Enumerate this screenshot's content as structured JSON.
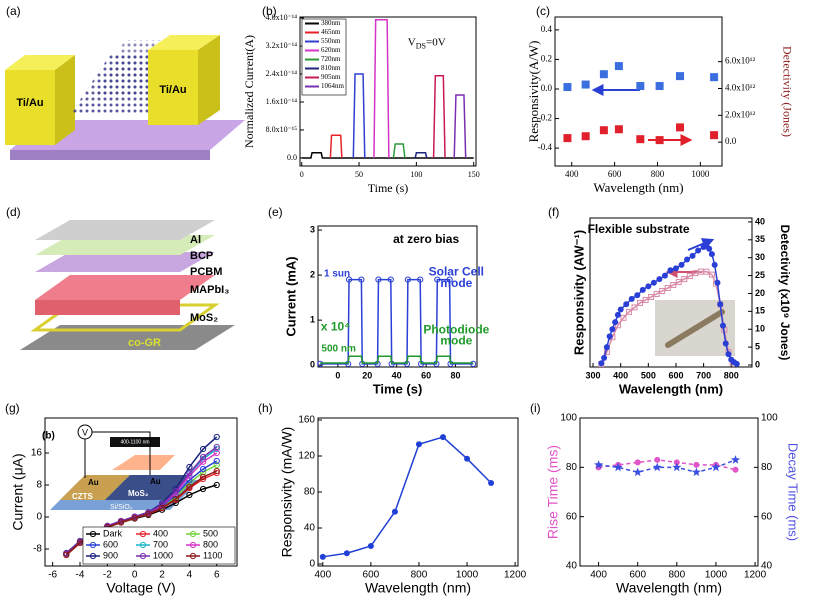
{
  "panel_a": {
    "label": "(a)",
    "texts": [
      "Ti/Au",
      "Ti/Au"
    ]
  },
  "panel_d": {
    "label": "(d)",
    "texts": [
      "Al",
      "BCP",
      "PCBM",
      "MAPbI₃",
      "MoS₂",
      "co-GR"
    ]
  },
  "panel_g_inset": {
    "texts": [
      "(b)",
      "V",
      "400-1100 nm",
      "CZTS",
      "Au",
      "MoS₂",
      "Au",
      "Si/SiO₂"
    ]
  },
  "chart_data": [
    {
      "type": "line",
      "panel": "(b)",
      "xlabel": "Time (s)",
      "ylabel": "Normalized Current(A)",
      "xlim": [
        -1.5,
        152
      ],
      "xticks": [
        0,
        50,
        100,
        150
      ],
      "ylim": [
        -2.3e-15,
        4.03e-14
      ],
      "yticks": [
        {
          "value": 0,
          "label": "0.0"
        },
        {
          "value": 8e-15,
          "label": "8.0x10⁻¹⁵"
        },
        {
          "value": 1.6e-14,
          "label": "1.6x10⁻¹⁴"
        },
        {
          "value": 2.4e-14,
          "label": "2.4x10⁻¹⁴"
        },
        {
          "value": 3.2e-14,
          "label": "3.2x10⁻¹⁴"
        },
        {
          "value": 4e-14,
          "label": "4.0x10⁻¹⁴"
        }
      ],
      "legend": "upper left",
      "annotations": [
        {
          "text": "V",
          "sub": "DS",
          "after": "=0V",
          "color": "#000000"
        }
      ],
      "series": [
        {
          "name": "380nm",
          "color": "#000000",
          "x": [
            0,
            8,
            9,
            17,
            18,
            150
          ],
          "values": [
            0,
            0,
            1.5e-15,
            1.5e-15,
            0,
            0
          ]
        },
        {
          "name": "465nm",
          "color": "#e8222a",
          "x": [
            25,
            26,
            34,
            35
          ],
          "values": [
            0,
            6.5e-15,
            6.5e-15,
            0
          ]
        },
        {
          "name": "550nm",
          "color": "#2e3fd0",
          "x": [
            45,
            46.5,
            53.5,
            55
          ],
          "values": [
            0,
            2.4e-14,
            2.4e-14,
            0
          ]
        },
        {
          "name": "620nm",
          "color": "#d633c9",
          "x": [
            63,
            64.5,
            74.5,
            76
          ],
          "values": [
            0,
            3.95e-14,
            3.95e-14,
            0
          ]
        },
        {
          "name": "720nm",
          "color": "#2a9a3a",
          "x": [
            80,
            81.5,
            88.5,
            90
          ],
          "values": [
            0,
            4e-15,
            4e-15,
            0
          ]
        },
        {
          "name": "810nm",
          "color": "#1a237e",
          "x": [
            99,
            100,
            108,
            109
          ],
          "values": [
            0,
            1.5e-15,
            1.5e-15,
            0
          ]
        },
        {
          "name": "905nm",
          "color": "#c8185a",
          "x": [
            115,
            116.5,
            123.5,
            125
          ],
          "values": [
            0,
            2.35e-14,
            2.35e-14,
            0
          ]
        },
        {
          "name": "1064nm",
          "color": "#7a2fb0",
          "x": [
            133,
            134.5,
            141.5,
            143
          ],
          "values": [
            0,
            1.8e-14,
            1.8e-14,
            0
          ]
        }
      ]
    },
    {
      "type": "scatter",
      "panel": "(c)",
      "xlabel": "Wavelength (nm)",
      "ylabel": "Responsivity(A/W)",
      "y2label": "Detectivity (Jones)",
      "y2label_color": "#8b1a1a",
      "x": [
        380,
        465,
        550,
        620,
        720,
        810,
        905,
        1064
      ],
      "xlim": [
        322,
        1101
      ],
      "xticks": [
        400,
        600,
        800,
        1000
      ],
      "ylim": [
        -0.521,
        0.487
      ],
      "yticks": [
        {
          "value": -0.4,
          "label": "-0.4"
        },
        {
          "value": -0.2,
          "label": "-0.2"
        },
        {
          "value": 0,
          "label": "0.0"
        },
        {
          "value": 0.2,
          "label": "0.2"
        },
        {
          "value": 0.4,
          "label": "0.4"
        }
      ],
      "y2lim": [
        -1780000000000,
        9330000000000
      ],
      "y2ticks": [
        {
          "value": 0,
          "label": "0.0"
        },
        {
          "value": 2000000000000,
          "label": "2.0x10¹²"
        },
        {
          "value": 4000000000000,
          "label": "4.0x10¹²"
        },
        {
          "value": 6000000000000,
          "label": "6.0x10¹²"
        }
      ],
      "series": [
        {
          "color": "#3b6fe0",
          "marker": "square",
          "values": [
            0.013,
            0.03,
            0.1,
            0.155,
            0.02,
            0.02,
            0.087,
            0.08
          ]
        },
        {
          "color": "#e0202a",
          "marker": "square",
          "axis": "y2",
          "values": [
            300000000000,
            440000000000,
            890000000000,
            960000000000,
            220000000000,
            150000000000,
            1100000000000,
            520000000000
          ]
        }
      ]
    },
    {
      "type": "line",
      "panel": "(e)",
      "xlabel": "Time (s)",
      "ylabel": "Current (mA)",
      "xlim": [
        -13.5,
        94.6
      ],
      "xticks": [
        0,
        20,
        40,
        60,
        80
      ],
      "ylim": [
        -0.04,
        3.09
      ],
      "yticks": [
        0,
        1,
        2,
        3
      ],
      "annotations": [
        {
          "text": "at zero bias",
          "color": "#000000"
        },
        {
          "text": "Solar Cell",
          "color": "#2a3fd6"
        },
        {
          "text": "mode",
          "color": "#2a3fd6"
        },
        {
          "text": "x 10⁴",
          "color": "#1f9a2a"
        },
        {
          "text": "Photodiode",
          "color": "#1f9a2a"
        },
        {
          "text": "mode",
          "color": "#1f9a2a"
        }
      ],
      "series": [
        {
          "name": "1 sun",
          "color": "#2a3fd6",
          "marker": "open-circle",
          "x": [
            -12,
            7,
            7.6,
            16,
            16.6,
            27,
            27.6,
            36,
            36.6,
            47,
            47.6,
            56,
            56.6,
            67,
            67.6,
            76,
            76.6,
            92
          ],
          "values": [
            0.03,
            0.03,
            1.9,
            1.9,
            0.03,
            0.03,
            1.9,
            1.9,
            0.03,
            0.03,
            1.9,
            1.9,
            0.03,
            0.03,
            1.9,
            1.9,
            0.03,
            0.03
          ]
        },
        {
          "name": "500 nm",
          "color": "#1f9a2a",
          "x": [
            -12,
            7,
            7.6,
            16,
            16.6,
            27,
            27.6,
            36,
            36.6,
            47,
            47.6,
            56,
            56.6,
            67,
            67.6,
            76,
            76.6,
            92
          ],
          "values": [
            0.05,
            0.05,
            0.2,
            0.2,
            0.05,
            0.05,
            0.2,
            0.2,
            0.05,
            0.05,
            0.2,
            0.2,
            0.05,
            0.05,
            0.2,
            0.2,
            0.05,
            0.05
          ]
        }
      ]
    },
    {
      "type": "line",
      "panel": "(f)",
      "xlabel": "Wavelength (nm)",
      "ylabel": "Responsivity (AW⁻¹)",
      "y2label": "Detectivity (x10⁹ Jones)",
      "xlim": [
        289,
        875
      ],
      "xticks": [
        300,
        400,
        500,
        600,
        700,
        800
      ],
      "ylim": [
        0,
        1
      ],
      "y2lim": [
        -0.56,
        41.1
      ],
      "y2ticks": [
        0,
        5,
        10,
        15,
        20,
        25,
        30,
        35,
        40
      ],
      "annotations": [
        {
          "text": "Flexible substrate",
          "color": "#000000"
        }
      ],
      "series": [
        {
          "color": "#d98aa8",
          "marker": "open-square",
          "x": [
            330,
            350,
            370,
            390,
            410,
            430,
            450,
            470,
            490,
            510,
            530,
            550,
            570,
            590,
            610,
            630,
            650,
            670,
            690,
            710,
            730,
            745,
            760,
            775,
            790,
            805
          ],
          "values": [
            0.02,
            0.1,
            0.2,
            0.28,
            0.33,
            0.37,
            0.4,
            0.43,
            0.45,
            0.47,
            0.49,
            0.51,
            0.53,
            0.55,
            0.57,
            0.59,
            0.61,
            0.63,
            0.64,
            0.64,
            0.62,
            0.56,
            0.42,
            0.25,
            0.1,
            0.03
          ]
        },
        {
          "color": "#2a3fd6",
          "marker": "circle",
          "axis": "y2",
          "x": [
            330,
            340,
            350,
            360,
            370,
            380,
            390,
            400,
            420,
            440,
            460,
            480,
            500,
            520,
            540,
            560,
            580,
            600,
            620,
            640,
            660,
            680,
            700,
            710,
            720,
            730,
            740,
            750,
            760,
            770,
            780,
            790,
            800,
            810,
            820
          ],
          "values": [
            0.5,
            2,
            5,
            8,
            10,
            12,
            14,
            15.5,
            17,
            18.5,
            19.5,
            21,
            22,
            23,
            24,
            25,
            26.5,
            27,
            28,
            29.5,
            30.5,
            32,
            33,
            33.5,
            32.5,
            31,
            28,
            23,
            17,
            11,
            6,
            3,
            1.5,
            0.8,
            0.3
          ]
        }
      ]
    },
    {
      "type": "line",
      "panel": "(g)",
      "xlabel": "Voltage (V)",
      "ylabel": "Current (μA)",
      "x": [
        -5,
        -4,
        -3,
        -2,
        -1,
        0,
        1,
        2,
        3,
        4,
        5,
        6
      ],
      "xlim": [
        -6.56,
        7.48
      ],
      "xticks": [
        -6,
        -4,
        -2,
        0,
        2,
        4,
        6
      ],
      "ylim": [
        -12.25,
        24.75
      ],
      "yticks": [
        -8,
        0,
        8,
        16
      ],
      "legend": "lower right",
      "series": [
        {
          "name": "Dark",
          "color": "#000000",
          "marker": "open-circle",
          "values": [
            -9.5,
            -6.5,
            -4.2,
            -2.6,
            -1.4,
            -0.4,
            0.5,
            1.8,
            3.5,
            5.5,
            7,
            8
          ]
        },
        {
          "name": "400",
          "color": "#e8222a",
          "marker": "open-circle",
          "values": [
            -9.5,
            -6.5,
            -4.2,
            -2.6,
            -1.4,
            -0.3,
            0.7,
            2.2,
            4.3,
            7.2,
            9.5,
            11
          ]
        },
        {
          "name": "500",
          "color": "#6fd23a",
          "marker": "open-circle",
          "values": [
            -9.4,
            -6.4,
            -4.1,
            -2.5,
            -1.3,
            -0.2,
            0.8,
            2.5,
            5,
            8.5,
            11.2,
            13
          ]
        },
        {
          "name": "600",
          "color": "#2a3fd6",
          "marker": "open-circle",
          "values": [
            -9.3,
            -6.3,
            -4,
            -2.4,
            -1.2,
            -0.1,
            0.9,
            2.7,
            5.5,
            9.2,
            12,
            14
          ]
        },
        {
          "name": "700",
          "color": "#19b5c9",
          "marker": "open-circle",
          "values": [
            -9.2,
            -6.2,
            -3.9,
            -2.3,
            -1.1,
            0,
            1,
            3,
            6.2,
            10.8,
            14.5,
            17
          ]
        },
        {
          "name": "800",
          "color": "#d633c9",
          "marker": "open-circle",
          "values": [
            -9.2,
            -6.2,
            -3.9,
            -2.3,
            -1.1,
            0,
            1,
            2.9,
            6,
            10.3,
            13.8,
            16
          ]
        },
        {
          "name": "900",
          "color": "#1a237e",
          "marker": "open-circle",
          "values": [
            -9,
            -6,
            -3.8,
            -2.2,
            -1,
            0.1,
            1.2,
            3.4,
            7,
            12.5,
            17,
            20
          ]
        },
        {
          "name": "1000",
          "color": "#7a2fb0",
          "marker": "open-circle",
          "values": [
            -9.1,
            -6.1,
            -3.8,
            -2.2,
            -1,
            0.1,
            1.1,
            3.1,
            6.4,
            11,
            15,
            17.5
          ]
        },
        {
          "name": "1100",
          "color": "#8b1a1a",
          "marker": "open-circle",
          "values": [
            -9.4,
            -6.4,
            -4.1,
            -2.5,
            -1.3,
            -0.2,
            0.8,
            2.3,
            4.5,
            7.5,
            10,
            11.5
          ]
        }
      ]
    },
    {
      "type": "line",
      "panel": "(h)",
      "xlabel": "Wavelength (nm)",
      "ylabel": "Responsivity (mA/W)",
      "x": [
        400,
        500,
        600,
        700,
        800,
        900,
        1000,
        1100
      ],
      "xlim": [
        380,
        1212
      ],
      "xticks": [
        400,
        600,
        800,
        1000,
        1200
      ],
      "ylim": [
        -2.2,
        162.2
      ],
      "yticks": [
        0,
        40,
        80,
        120,
        160
      ],
      "series": [
        {
          "color": "#1f3fd6",
          "marker": "circle",
          "values": [
            8,
            12,
            20,
            58,
            133,
            141,
            117,
            90
          ]
        }
      ]
    },
    {
      "type": "line",
      "panel": "(i)",
      "xlabel": "Wavelength (nm)",
      "ylabel": "Rise Time (ms)",
      "ylabel_color": "#e055c8",
      "y2label": "Decay Time (ms)",
      "y2label_color": "#5050e0",
      "x": [
        400,
        500,
        600,
        700,
        800,
        900,
        1000,
        1100
      ],
      "xlim": [
        305,
        1215
      ],
      "xticks": [
        400,
        600,
        800,
        1000,
        1200
      ],
      "ylim": [
        40,
        100
      ],
      "yticks": [
        40,
        60,
        80,
        100
      ],
      "y2lim": [
        40,
        100
      ],
      "y2ticks": [
        40,
        60,
        80,
        100
      ],
      "series": [
        {
          "color": "#e055c8",
          "marker": "circle",
          "dashed": true,
          "values": [
            80,
            81,
            82,
            83,
            82,
            81,
            81,
            79
          ]
        },
        {
          "color": "#3a4fe0",
          "marker": "star",
          "dashed": true,
          "axis": "y2",
          "values": [
            81,
            80,
            78,
            80,
            80,
            78,
            80,
            83
          ]
        }
      ]
    }
  ]
}
